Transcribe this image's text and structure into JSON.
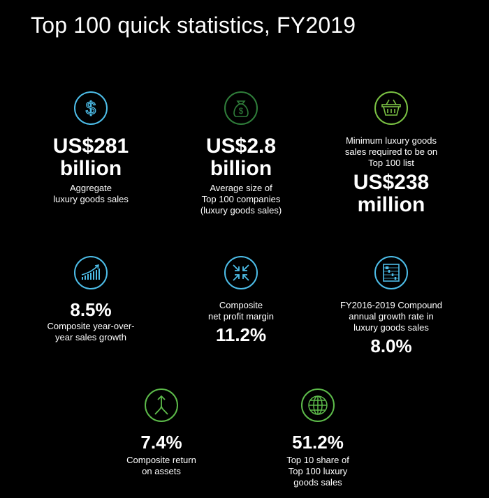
{
  "title": "Top 100 quick statistics, FY2019",
  "colors": {
    "blue": "#4dbde8",
    "dark_green": "#2f7d3a",
    "light_green": "#7ac143",
    "green": "#5dbb4a"
  },
  "stats": [
    {
      "icon": "dollar-icon",
      "value_lines": [
        "US$281",
        "billion"
      ],
      "desc_lines": [
        "Aggregate",
        "luxury goods sales"
      ]
    },
    {
      "icon": "money-bag-icon",
      "value_lines": [
        "US$2.8",
        "billion"
      ],
      "desc_lines": [
        "Average size of",
        "Top 100 companies",
        "(luxury goods sales)"
      ]
    },
    {
      "icon": "shopping-basket-icon",
      "desc_lines": [
        "Minimum luxury goods",
        "sales required to be on",
        "Top 100 list"
      ],
      "value_lines": [
        "US$238",
        "million"
      ]
    },
    {
      "icon": "growth-chart-icon",
      "value_lines": [
        "8.5%"
      ],
      "desc_lines": [
        "Composite year-over-",
        "year sales growth"
      ]
    },
    {
      "icon": "compress-arrows-icon",
      "desc_lines": [
        "Composite",
        "net profit margin"
      ],
      "value_lines": [
        "11.2%"
      ]
    },
    {
      "icon": "abacus-icon",
      "desc_lines": [
        "FY2016-2019 Compound",
        "annual growth rate in",
        "luxury goods sales"
      ],
      "value_lines": [
        "8.0%"
      ]
    },
    {
      "icon": "merge-arrow-icon",
      "value_lines": [
        "7.4%"
      ],
      "desc_lines": [
        "Composite return",
        "on assets"
      ]
    },
    {
      "icon": "globe-icon",
      "value_lines": [
        "51.2%"
      ],
      "desc_lines": [
        "Top 10 share of",
        "Top 100 luxury",
        "goods sales"
      ]
    }
  ]
}
